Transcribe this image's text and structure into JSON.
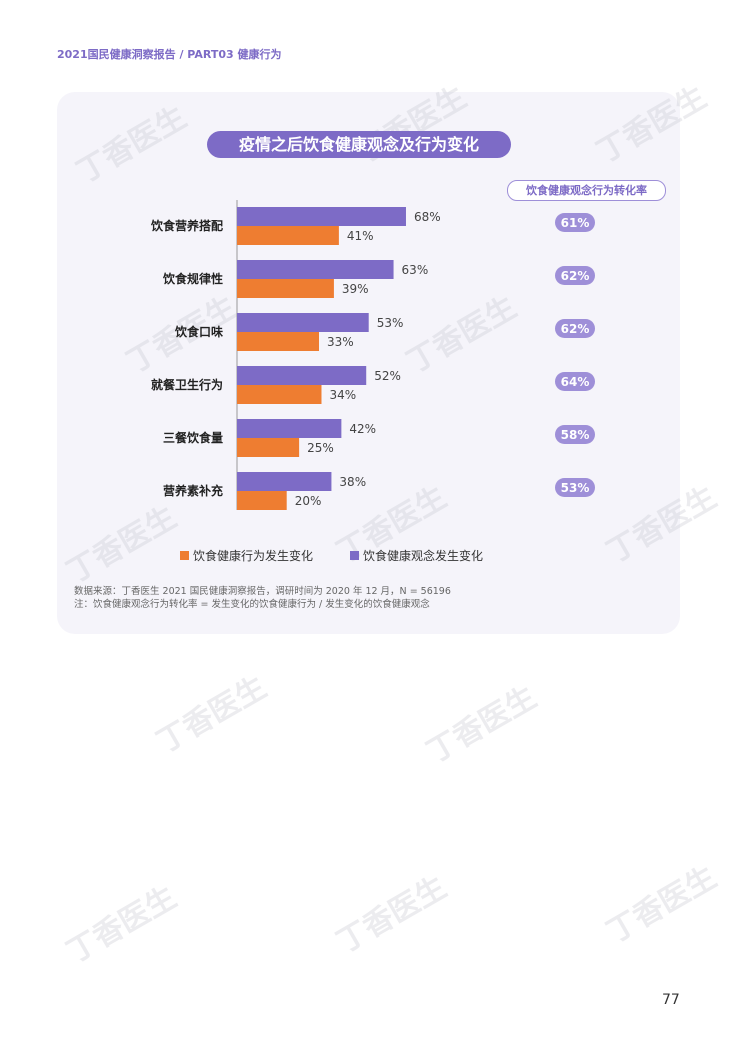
{
  "header": "2021国民健康洞察报告 / PART03 健康行为",
  "watermark": "丁香医生",
  "chart_data": {
    "type": "bar",
    "title": "疫情之后饮食健康观念及行为变化",
    "categories": [
      "饮食营养搭配",
      "饮食规律性",
      "饮食口味",
      "就餐卫生行为",
      "三餐饮食量",
      "营养素补充"
    ],
    "series": [
      {
        "name": "饮食健康观念发生变化",
        "color": "#7d6bc6",
        "values": [
          68,
          63,
          53,
          52,
          42,
          38
        ]
      },
      {
        "name": "饮食健康行为发生变化",
        "color": "#ee7d31",
        "values": [
          41,
          39,
          33,
          34,
          25,
          20
        ]
      }
    ],
    "value_labels": {
      "concept": [
        "68%",
        "63%",
        "53%",
        "52%",
        "42%",
        "38%"
      ],
      "behavior": [
        "41%",
        "39%",
        "33%",
        "34%",
        "25%",
        "20%"
      ]
    },
    "rate_header": "饮食健康观念行为转化率",
    "rates": [
      "61%",
      "62%",
      "62%",
      "64%",
      "58%",
      "53%"
    ],
    "legend": [
      "饮食健康行为发生变化",
      "饮食健康观念发生变化"
    ],
    "legend_placement": "bottom",
    "xlim": [
      0,
      100
    ]
  },
  "source": "数据来源：丁香医生 2021 国民健康洞察报告，调研时间为 2020 年 12 月，N = 56196",
  "note": "注：饮食健康观念行为转化率 = 发生变化的饮食健康行为 / 发生变化的饮食健康观念",
  "page_number": "77"
}
